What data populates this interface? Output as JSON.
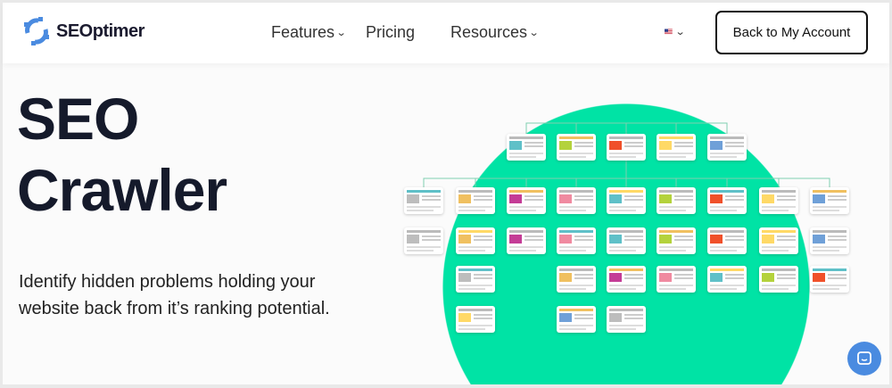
{
  "nav": {
    "brand": "SEOptimer",
    "items": [
      {
        "label": "Features",
        "has_dropdown": true
      },
      {
        "label": "Pricing",
        "has_dropdown": false
      },
      {
        "label": "Resources",
        "has_dropdown": true
      }
    ],
    "language_icon": "us-flag-icon",
    "account_button": "Back to My Account"
  },
  "hero": {
    "title_line1": "SEO",
    "title_line2": "Crawler",
    "subtitle": "Identify hidden problems holding your website back from it’s ranking potential.",
    "illustration": "site-map-tree-of-page-thumbnails"
  },
  "colors": {
    "accent": "#00e3a5",
    "brand_blue": "#4a8be0",
    "text_dark": "#151a2b"
  },
  "chat_icon": "chat-bubble-icon"
}
